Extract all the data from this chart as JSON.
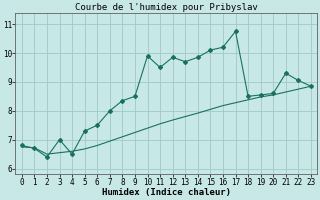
{
  "title": "Courbe de l'humidex pour Pribyslav",
  "xlabel": "Humidex (Indice chaleur)",
  "ylabel": "",
  "background_color": "#c8e8e8",
  "grid_color": "#a0c8c8",
  "line_color": "#1a7060",
  "x_values": [
    0,
    1,
    2,
    3,
    4,
    5,
    6,
    7,
    8,
    9,
    10,
    11,
    12,
    13,
    14,
    15,
    16,
    17,
    18,
    19,
    20,
    21,
    22,
    23
  ],
  "line1_y": [
    6.8,
    6.7,
    6.4,
    7.0,
    6.5,
    7.3,
    7.5,
    8.0,
    8.35,
    8.5,
    9.9,
    9.5,
    9.85,
    9.7,
    9.85,
    10.1,
    10.2,
    10.75,
    8.5,
    8.55,
    8.6,
    9.3,
    9.05,
    8.85
  ],
  "line2_y": [
    6.75,
    6.72,
    6.5,
    6.55,
    6.6,
    6.68,
    6.8,
    6.95,
    7.1,
    7.25,
    7.4,
    7.55,
    7.68,
    7.8,
    7.92,
    8.05,
    8.18,
    8.28,
    8.38,
    8.48,
    8.55,
    8.65,
    8.75,
    8.85
  ],
  "ylim": [
    5.8,
    11.4
  ],
  "xlim": [
    -0.5,
    23.5
  ],
  "yticks": [
    6,
    7,
    8,
    9,
    10,
    11
  ],
  "xticks": [
    0,
    1,
    2,
    3,
    4,
    5,
    6,
    7,
    8,
    9,
    10,
    11,
    12,
    13,
    14,
    15,
    16,
    17,
    18,
    19,
    20,
    21,
    22,
    23
  ],
  "title_fontsize": 6.5,
  "label_fontsize": 6.5,
  "tick_fontsize": 5.5
}
